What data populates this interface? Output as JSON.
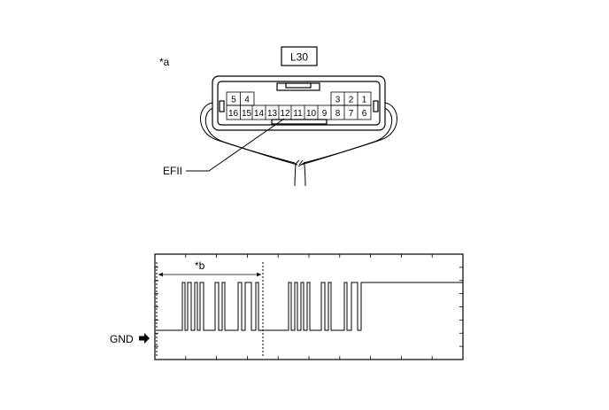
{
  "connector": {
    "marker": "*a",
    "label": "L30",
    "pins_top_left": [
      "5",
      "4"
    ],
    "pins_top_right": [
      "3",
      "2",
      "1"
    ],
    "pins_bottom": [
      "16",
      "15",
      "14",
      "13",
      "12",
      "11",
      "10",
      "9",
      "8",
      "7",
      "6"
    ],
    "signal_label": "EFII"
  },
  "waveform": {
    "marker": "*b",
    "gnd_label": "GND",
    "gnd_icon": "right-arrow-icon"
  }
}
